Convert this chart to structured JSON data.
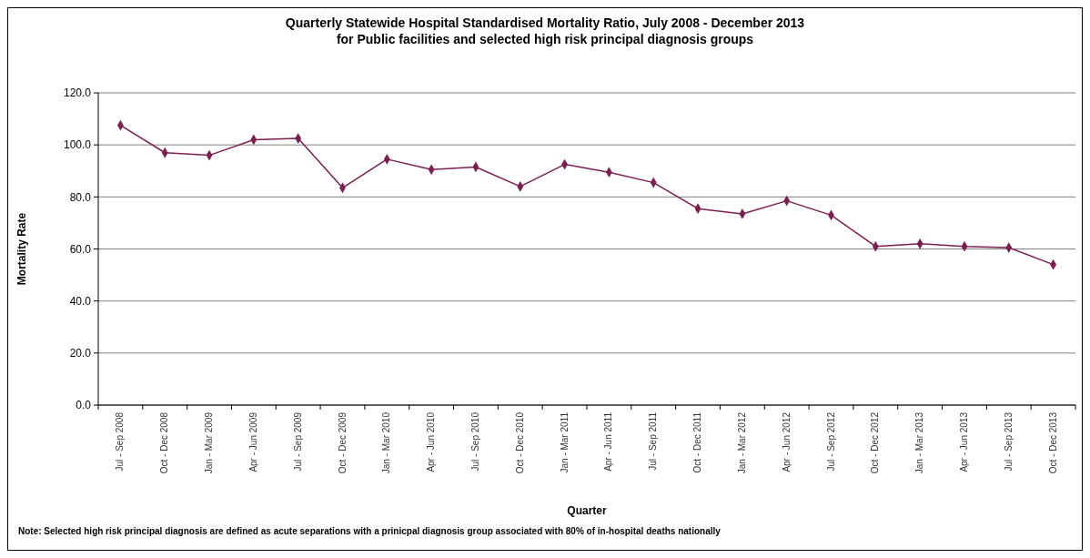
{
  "chart_data": {
    "type": "line",
    "title": "Quarterly Statewide Hospital Standardised Mortality Ratio, July 2008 - December 2013\nfor Public facilities and selected high risk principal diagnosis groups",
    "xlabel": "Quarter",
    "ylabel": "Mortality Rate",
    "categories": [
      "Jul - Sep 2008",
      "Oct - Dec 2008",
      "Jan - Mar 2009",
      "Apr - Jun 2009",
      "Jul - Sep 2009",
      "Oct - Dec 2009",
      "Jan - Mar 2010",
      "Apr - Jun 2010",
      "Jul - Sep 2010",
      "Oct - Dec 2010",
      "Jan - Mar 2011",
      "Apr - Jun 2011",
      "Jul - Sep 2011",
      "Oct - Dec 2011",
      "Jan - Mar 2012",
      "Apr - Jun 2012",
      "Jul - Sep 2012",
      "Oct - Dec 2012",
      "Jan - Mar 2013",
      "Apr - Jun 2013",
      "Jul - Sep 2013",
      "Oct - Dec 2013"
    ],
    "series": [
      {
        "color": "#7a1f4f",
        "values": [
          107.5,
          97,
          96,
          102,
          102.5,
          83.5,
          94.5,
          90.5,
          91.5,
          84,
          92.5,
          89.5,
          85.5,
          75.5,
          73.5,
          78.5,
          73,
          61,
          62,
          61,
          60.5,
          54
        ]
      }
    ],
    "ylim": [
      0,
      120
    ],
    "yticks": [
      {
        "value": 0,
        "label": "0.0"
      },
      {
        "value": 20,
        "label": "20.0"
      },
      {
        "value": 40,
        "label": "40.0"
      },
      {
        "value": 60,
        "label": "60.0"
      },
      {
        "value": 80,
        "label": "80.0"
      },
      {
        "value": 100,
        "label": "100.0"
      },
      {
        "value": 120,
        "label": "120.0"
      }
    ],
    "grid": "y",
    "marker": "diamond",
    "line_style": "solid",
    "annotations": [
      "Note: Selected high risk principal diagnosis are defined as acute separations with a prinicpal diagnosis group associated with 80% of in-hospital deaths nationally"
    ]
  }
}
